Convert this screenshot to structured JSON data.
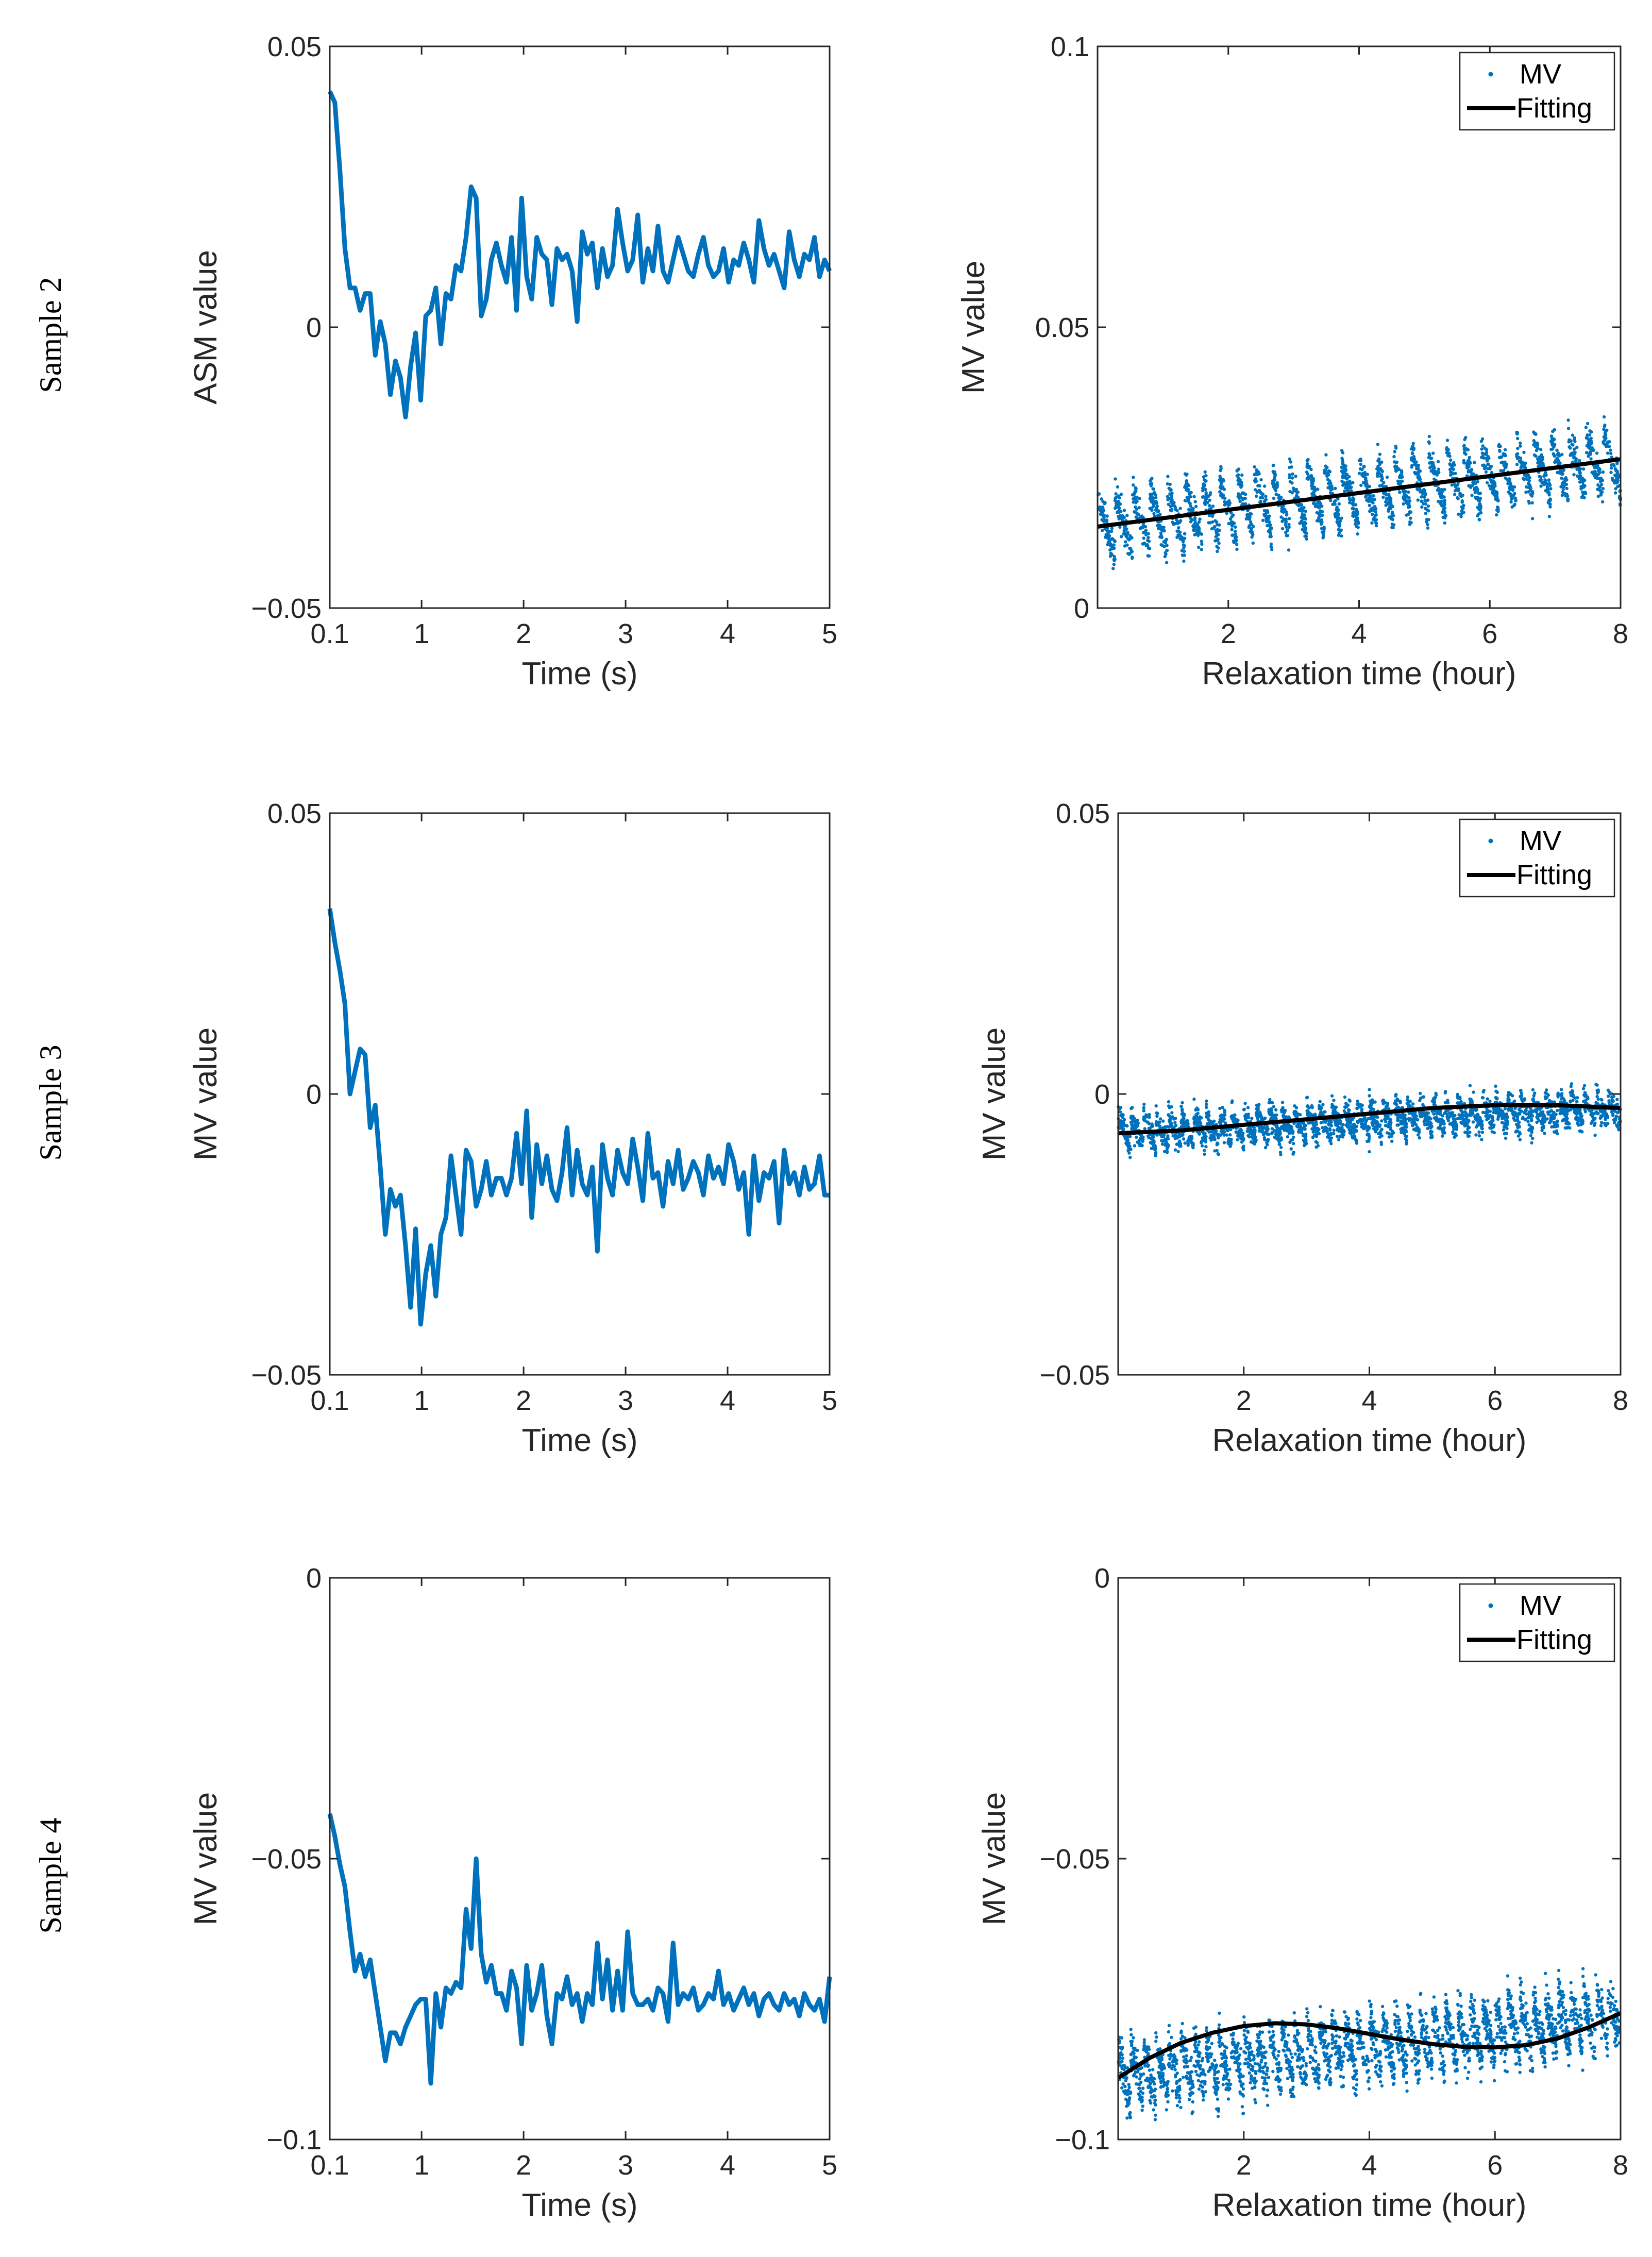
{
  "row_labels": [
    "Sample 2",
    "Sample 3",
    "Sample 4"
  ],
  "colors": {
    "series_blue": "#0072BD",
    "fit_black": "#000000",
    "axis": "#262626"
  },
  "chart_data": [
    {
      "id": "s2-left",
      "type": "line",
      "xlabel": "Time (s)",
      "ylabel": "ASM value",
      "xlim": [
        0.1,
        5
      ],
      "ylim": [
        -0.05,
        0.05
      ],
      "xticks": [
        0.1,
        1,
        2,
        3,
        4,
        5
      ],
      "xtick_labels": [
        "0.1",
        "1",
        "2",
        "3",
        "4",
        "5"
      ],
      "yticks": [
        -0.05,
        0,
        0.05
      ],
      "ytick_labels": [
        "−0.05",
        "0",
        "0.05"
      ],
      "series": [
        {
          "values": [
            0.042,
            0.04,
            0.028,
            0.014,
            0.007,
            0.007,
            0.003,
            0.006,
            0.006,
            -0.005,
            0.001,
            -0.003,
            -0.012,
            -0.006,
            -0.009,
            -0.016,
            -0.007,
            -0.001,
            -0.013,
            0.002,
            0.003,
            0.007,
            -0.003,
            0.006,
            0.005,
            0.011,
            0.01,
            0.016,
            0.025,
            0.023,
            0.002,
            0.005,
            0.012,
            0.015,
            0.011,
            0.008,
            0.016,
            0.003,
            0.023,
            0.009,
            0.005,
            0.016,
            0.013,
            0.012,
            0.004,
            0.014,
            0.012,
            0.013,
            0.01,
            0.001,
            0.017,
            0.013,
            0.015,
            0.007,
            0.014,
            0.009,
            0.011,
            0.021,
            0.015,
            0.01,
            0.012,
            0.02,
            0.008,
            0.014,
            0.01,
            0.018,
            0.01,
            0.008,
            0.012,
            0.016,
            0.013,
            0.01,
            0.009,
            0.013,
            0.016,
            0.011,
            0.009,
            0.01,
            0.014,
            0.008,
            0.012,
            0.011,
            0.015,
            0.012,
            0.008,
            0.019,
            0.014,
            0.011,
            0.013,
            0.01,
            0.007,
            0.017,
            0.012,
            0.009,
            0.013,
            0.012,
            0.016,
            0.009,
            0.012,
            0.01
          ]
        }
      ]
    },
    {
      "id": "s2-right",
      "type": "scatter",
      "xlabel": "Relaxation time (hour)",
      "ylabel": "MV value",
      "xlim": [
        0,
        8
      ],
      "ylim": [
        0,
        0.1
      ],
      "xticks": [
        2,
        4,
        6,
        8
      ],
      "xtick_labels": [
        "2",
        "4",
        "6",
        "8"
      ],
      "yticks": [
        0,
        0.05,
        0.1
      ],
      "ytick_labels": [
        "0",
        "0.05",
        "0.1"
      ],
      "legend": {
        "position": "top-right",
        "entries": [
          "MV",
          "Fitting"
        ]
      },
      "scatter_model": {
        "center_start": 0.0145,
        "center_end": 0.0265,
        "cycles": 30,
        "amp": 0.0055,
        "noise": 0.003,
        "points": 2400
      },
      "fit": {
        "x": [
          0,
          8
        ],
        "y": [
          0.0145,
          0.0265
        ]
      }
    },
    {
      "id": "s3-left",
      "type": "line",
      "xlabel": "Time (s)",
      "ylabel": "MV value",
      "xlim": [
        0.1,
        5
      ],
      "ylim": [
        -0.05,
        0.05
      ],
      "xticks": [
        0.1,
        1,
        2,
        3,
        4,
        5
      ],
      "xtick_labels": [
        "0.1",
        "1",
        "2",
        "3",
        "4",
        "5"
      ],
      "yticks": [
        -0.05,
        0,
        0.05
      ],
      "ytick_labels": [
        "−0.05",
        "0",
        "0.05"
      ],
      "series": [
        {
          "values": [
            0.033,
            0.027,
            0.022,
            0.016,
            0.0,
            0.004,
            0.008,
            0.007,
            -0.006,
            -0.002,
            -0.013,
            -0.025,
            -0.017,
            -0.02,
            -0.018,
            -0.027,
            -0.038,
            -0.024,
            -0.041,
            -0.032,
            -0.027,
            -0.036,
            -0.025,
            -0.022,
            -0.011,
            -0.018,
            -0.025,
            -0.01,
            -0.012,
            -0.02,
            -0.017,
            -0.012,
            -0.018,
            -0.015,
            -0.015,
            -0.018,
            -0.015,
            -0.007,
            -0.016,
            -0.003,
            -0.022,
            -0.009,
            -0.016,
            -0.011,
            -0.017,
            -0.019,
            -0.014,
            -0.006,
            -0.018,
            -0.01,
            -0.016,
            -0.018,
            -0.013,
            -0.028,
            -0.009,
            -0.015,
            -0.018,
            -0.01,
            -0.014,
            -0.016,
            -0.008,
            -0.013,
            -0.019,
            -0.007,
            -0.015,
            -0.014,
            -0.02,
            -0.012,
            -0.016,
            -0.01,
            -0.017,
            -0.015,
            -0.012,
            -0.014,
            -0.018,
            -0.011,
            -0.015,
            -0.013,
            -0.016,
            -0.009,
            -0.012,
            -0.017,
            -0.014,
            -0.025,
            -0.011,
            -0.019,
            -0.014,
            -0.015,
            -0.012,
            -0.023,
            -0.01,
            -0.016,
            -0.014,
            -0.018,
            -0.013,
            -0.017,
            -0.016,
            -0.011,
            -0.018,
            -0.018
          ]
        }
      ]
    },
    {
      "id": "s3-right",
      "type": "scatter",
      "xlabel": "Relaxation time (hour)",
      "ylabel": "MV value",
      "xlim": [
        0,
        8
      ],
      "ylim": [
        -0.05,
        0.05
      ],
      "xticks": [
        2,
        4,
        6,
        8
      ],
      "xtick_labels": [
        "2",
        "4",
        "6",
        "8"
      ],
      "yticks": [
        -0.05,
        0,
        0.05
      ],
      "ytick_labels": [
        "−0.05",
        "0",
        "0.05"
      ],
      "legend": {
        "position": "top-right",
        "entries": [
          "MV",
          "Fitting"
        ]
      },
      "scatter_model": {
        "center_start": -0.007,
        "center_end": -0.0025,
        "cycles": 40,
        "amp": 0.0025,
        "noise": 0.0025,
        "points": 2600
      },
      "fit": {
        "x": [
          0,
          1,
          2,
          3,
          4,
          5,
          6,
          7,
          8
        ],
        "y": [
          -0.007,
          -0.0065,
          -0.0055,
          -0.0045,
          -0.0035,
          -0.0025,
          -0.002,
          -0.002,
          -0.0025
        ]
      }
    },
    {
      "id": "s4-left",
      "type": "line",
      "xlabel": "Time (s)",
      "ylabel": "MV value",
      "xlim": [
        0.1,
        5
      ],
      "ylim": [
        -0.1,
        0
      ],
      "xticks": [
        0.1,
        1,
        2,
        3,
        4,
        5
      ],
      "xtick_labels": [
        "0.1",
        "1",
        "2",
        "3",
        "4",
        "5"
      ],
      "yticks": [
        -0.1,
        -0.05,
        0
      ],
      "ytick_labels": [
        "−0.1",
        "−0.05",
        "0"
      ],
      "series": [
        {
          "values": [
            -0.042,
            -0.046,
            -0.051,
            -0.055,
            -0.063,
            -0.07,
            -0.067,
            -0.071,
            -0.068,
            -0.074,
            -0.08,
            -0.086,
            -0.081,
            -0.081,
            -0.083,
            -0.08,
            -0.078,
            -0.076,
            -0.075,
            -0.075,
            -0.09,
            -0.074,
            -0.08,
            -0.073,
            -0.074,
            -0.072,
            -0.073,
            -0.059,
            -0.066,
            -0.05,
            -0.067,
            -0.072,
            -0.069,
            -0.074,
            -0.074,
            -0.077,
            -0.07,
            -0.073,
            -0.083,
            -0.069,
            -0.077,
            -0.074,
            -0.069,
            -0.078,
            -0.083,
            -0.074,
            -0.075,
            -0.071,
            -0.076,
            -0.074,
            -0.079,
            -0.074,
            -0.076,
            -0.065,
            -0.075,
            -0.068,
            -0.077,
            -0.07,
            -0.077,
            -0.063,
            -0.074,
            -0.076,
            -0.076,
            -0.075,
            -0.077,
            -0.073,
            -0.074,
            -0.079,
            -0.065,
            -0.076,
            -0.074,
            -0.075,
            -0.073,
            -0.077,
            -0.076,
            -0.074,
            -0.075,
            -0.07,
            -0.076,
            -0.074,
            -0.077,
            -0.075,
            -0.073,
            -0.076,
            -0.074,
            -0.078,
            -0.075,
            -0.074,
            -0.076,
            -0.077,
            -0.074,
            -0.076,
            -0.075,
            -0.078,
            -0.074,
            -0.076,
            -0.077,
            -0.075,
            -0.079,
            -0.071
          ]
        }
      ]
    },
    {
      "id": "s4-right",
      "type": "scatter",
      "xlabel": "Relaxation time (hour)",
      "ylabel": "MV value",
      "xlim": [
        0,
        8
      ],
      "ylim": [
        -0.1,
        0
      ],
      "xticks": [
        2,
        4,
        6,
        8
      ],
      "xtick_labels": [
        "2",
        "4",
        "6",
        "8"
      ],
      "yticks": [
        -0.1,
        -0.05,
        0
      ],
      "ytick_labels": [
        "−0.1",
        "−0.05",
        "0"
      ],
      "legend": {
        "position": "top-right",
        "entries": [
          "MV",
          "Fitting"
        ]
      },
      "scatter_model": {
        "center_start": -0.089,
        "center_end": -0.078,
        "cycles": 40,
        "amp": 0.005,
        "noise": 0.004,
        "points": 2600
      },
      "fit": {
        "x": [
          0,
          0.5,
          1,
          1.5,
          2,
          2.5,
          3,
          3.5,
          4,
          4.5,
          5,
          5.5,
          6,
          6.5,
          7,
          7.5,
          8
        ],
        "y": [
          -0.089,
          -0.0855,
          -0.0828,
          -0.081,
          -0.0798,
          -0.0793,
          -0.0795,
          -0.0802,
          -0.0812,
          -0.0822,
          -0.083,
          -0.0835,
          -0.0836,
          -0.0832,
          -0.082,
          -0.08,
          -0.0775
        ]
      }
    }
  ]
}
